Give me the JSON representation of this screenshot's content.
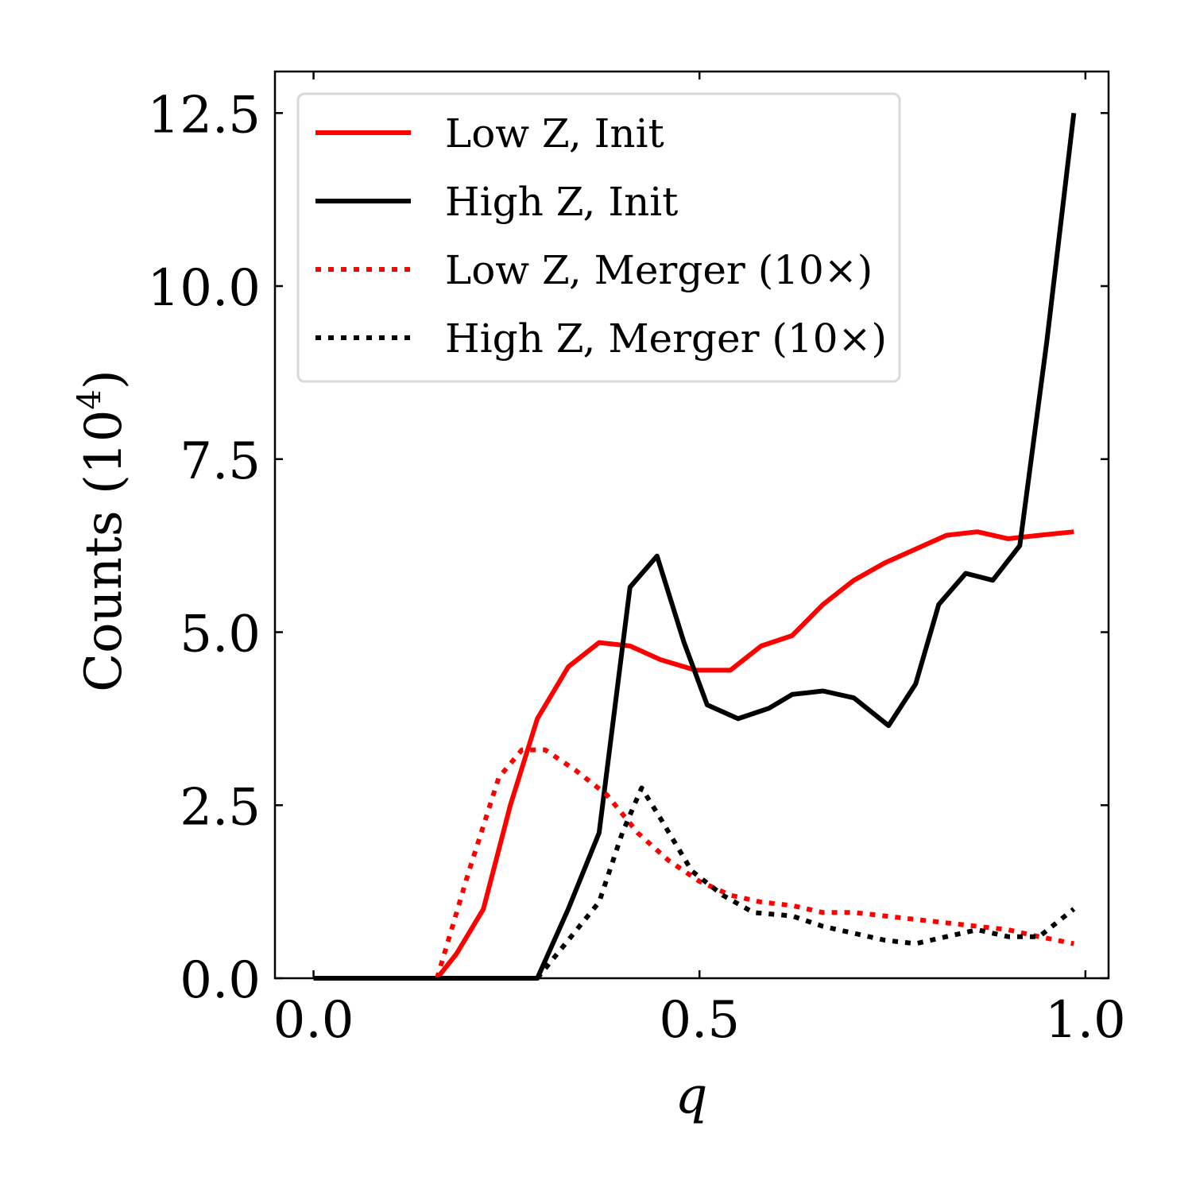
{
  "chart_data": {
    "type": "line",
    "title": "",
    "xlabel": "q",
    "ylabel": "Counts (10",
    "ylabel_superscript": "4",
    "ylabel_close": ")",
    "xlim": [
      -0.05,
      1.03
    ],
    "ylim": [
      0,
      13.1
    ],
    "xticks": [
      0.0,
      0.5,
      1.0
    ],
    "xtick_labels": [
      "0.0",
      "0.5",
      "1.0"
    ],
    "yticks": [
      0.0,
      2.5,
      5.0,
      7.5,
      10.0,
      12.5
    ],
    "ytick_labels": [
      "0.0",
      "2.5",
      "5.0",
      "7.5",
      "10.0",
      "12.5"
    ],
    "grid": false,
    "legend_position": "top-left",
    "series": [
      {
        "name": "Low Z, Init",
        "color": "#ff0000",
        "style": "solid",
        "x": [
          0.0,
          0.035,
          0.07,
          0.105,
          0.14,
          0.16,
          0.185,
          0.22,
          0.255,
          0.29,
          0.33,
          0.37,
          0.41,
          0.45,
          0.495,
          0.54,
          0.58,
          0.62,
          0.66,
          0.7,
          0.74,
          0.78,
          0.82,
          0.86,
          0.9,
          0.94,
          0.985
        ],
        "y": [
          0.0,
          0.0,
          0.0,
          0.0,
          0.0,
          0.0,
          0.35,
          1.0,
          2.5,
          3.75,
          4.5,
          4.85,
          4.8,
          4.6,
          4.45,
          4.45,
          4.8,
          4.95,
          5.4,
          5.75,
          6.0,
          6.2,
          6.4,
          6.45,
          6.35,
          6.4,
          6.45
        ]
      },
      {
        "name": "High Z, Init",
        "color": "#000000",
        "style": "solid",
        "x": [
          0.0,
          0.1,
          0.2,
          0.29,
          0.33,
          0.37,
          0.41,
          0.445,
          0.48,
          0.51,
          0.55,
          0.59,
          0.62,
          0.66,
          0.7,
          0.745,
          0.78,
          0.81,
          0.845,
          0.88,
          0.915,
          0.95,
          0.985
        ],
        "y": [
          0.0,
          0.0,
          0.0,
          0.0,
          1.0,
          2.1,
          5.65,
          6.1,
          4.85,
          3.95,
          3.75,
          3.9,
          4.1,
          4.15,
          4.05,
          3.65,
          4.25,
          5.4,
          5.85,
          5.75,
          6.25,
          9.2,
          12.5
        ]
      },
      {
        "name": "Low Z, Merger (10×)",
        "color": "#ff0000",
        "style": "dotted",
        "x": [
          0.16,
          0.2,
          0.24,
          0.27,
          0.3,
          0.34,
          0.38,
          0.42,
          0.46,
          0.5,
          0.54,
          0.58,
          0.62,
          0.66,
          0.7,
          0.74,
          0.78,
          0.82,
          0.86,
          0.9,
          0.94,
          0.985
        ],
        "y": [
          0.0,
          1.5,
          2.9,
          3.3,
          3.3,
          3.0,
          2.65,
          2.1,
          1.7,
          1.4,
          1.2,
          1.1,
          1.05,
          0.95,
          0.95,
          0.9,
          0.85,
          0.8,
          0.75,
          0.7,
          0.6,
          0.5
        ]
      },
      {
        "name": "High Z, Merger (10×)",
        "color": "#000000",
        "style": "dotted",
        "x": [
          0.29,
          0.33,
          0.37,
          0.4,
          0.425,
          0.45,
          0.49,
          0.53,
          0.57,
          0.62,
          0.66,
          0.7,
          0.74,
          0.78,
          0.82,
          0.86,
          0.9,
          0.94,
          0.985
        ],
        "y": [
          0.0,
          0.55,
          1.1,
          2.1,
          2.75,
          2.3,
          1.55,
          1.2,
          0.95,
          0.9,
          0.75,
          0.65,
          0.55,
          0.5,
          0.6,
          0.7,
          0.6,
          0.6,
          1.0
        ]
      }
    ]
  }
}
